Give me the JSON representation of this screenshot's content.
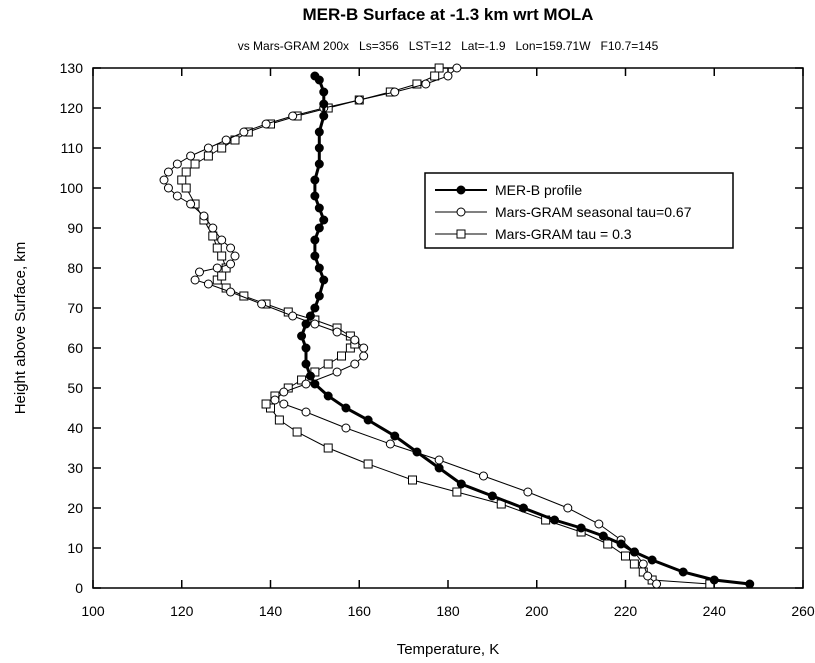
{
  "chart_data": {
    "type": "line",
    "title": "MER-B Surface at -1.3 km wrt MOLA",
    "subtitle": "vs Mars-GRAM 200x   Ls=356   LST=12   Lat=-1.9   Lon=159.71W   F10.7=145",
    "xlabel": "Temperature, K",
    "ylabel": "Height above Surface,  km",
    "xlim": [
      100,
      260
    ],
    "ylim": [
      0,
      130
    ],
    "x_ticks": [
      "100",
      "120",
      "140",
      "160",
      "180",
      "200",
      "220",
      "240",
      "260"
    ],
    "y_ticks": [
      "0",
      "10",
      "20",
      "30",
      "40",
      "50",
      "60",
      "70",
      "80",
      "90",
      "100",
      "110",
      "120",
      "130"
    ],
    "grid": false,
    "legend_position": "right-center",
    "series": [
      {
        "name": "MER-B profile",
        "marker": "filled-circle",
        "color": "#000000",
        "points": [
          [
            248,
            1
          ],
          [
            240,
            2
          ],
          [
            233,
            4
          ],
          [
            226,
            7
          ],
          [
            222,
            9
          ],
          [
            219,
            11
          ],
          [
            215,
            13
          ],
          [
            210,
            15
          ],
          [
            204,
            17
          ],
          [
            197,
            20
          ],
          [
            190,
            23
          ],
          [
            183,
            26
          ],
          [
            178,
            30
          ],
          [
            173,
            34
          ],
          [
            168,
            38
          ],
          [
            162,
            42
          ],
          [
            157,
            45
          ],
          [
            153,
            48
          ],
          [
            150,
            51
          ],
          [
            149,
            53
          ],
          [
            148,
            56
          ],
          [
            148,
            60
          ],
          [
            147,
            63
          ],
          [
            148,
            66
          ],
          [
            149,
            68
          ],
          [
            150,
            70
          ],
          [
            151,
            73
          ],
          [
            152,
            77
          ],
          [
            151,
            80
          ],
          [
            150,
            83
          ],
          [
            150,
            87
          ],
          [
            151,
            90
          ],
          [
            152,
            92
          ],
          [
            151,
            95
          ],
          [
            150,
            98
          ],
          [
            150,
            102
          ],
          [
            151,
            106
          ],
          [
            151,
            110
          ],
          [
            151,
            114
          ],
          [
            152,
            118
          ],
          [
            152,
            121
          ],
          [
            152,
            124
          ],
          [
            151,
            127
          ],
          [
            150,
            128
          ]
        ]
      },
      {
        "name": "Mars-GRAM seasonal tau=0.67",
        "marker": "open-circle",
        "color": "#000000",
        "points": [
          [
            227,
            1
          ],
          [
            225,
            3
          ],
          [
            224,
            6
          ],
          [
            222,
            9
          ],
          [
            219,
            12
          ],
          [
            214,
            16
          ],
          [
            207,
            20
          ],
          [
            198,
            24
          ],
          [
            188,
            28
          ],
          [
            178,
            32
          ],
          [
            167,
            36
          ],
          [
            157,
            40
          ],
          [
            148,
            44
          ],
          [
            143,
            46
          ],
          [
            141,
            47
          ],
          [
            143,
            49
          ],
          [
            148,
            51
          ],
          [
            155,
            54
          ],
          [
            159,
            56
          ],
          [
            161,
            58
          ],
          [
            161,
            60
          ],
          [
            159,
            62
          ],
          [
            155,
            64
          ],
          [
            150,
            66
          ],
          [
            145,
            68
          ],
          [
            138,
            71
          ],
          [
            131,
            74
          ],
          [
            126,
            76
          ],
          [
            123,
            77
          ],
          [
            124,
            79
          ],
          [
            128,
            80
          ],
          [
            131,
            81
          ],
          [
            132,
            83
          ],
          [
            131,
            85
          ],
          [
            129,
            87
          ],
          [
            127,
            90
          ],
          [
            125,
            93
          ],
          [
            122,
            96
          ],
          [
            119,
            98
          ],
          [
            117,
            100
          ],
          [
            116,
            102
          ],
          [
            117,
            104
          ],
          [
            119,
            106
          ],
          [
            122,
            108
          ],
          [
            126,
            110
          ],
          [
            130,
            112
          ],
          [
            134,
            114
          ],
          [
            139,
            116
          ],
          [
            145,
            118
          ],
          [
            152,
            120
          ],
          [
            160,
            122
          ],
          [
            168,
            124
          ],
          [
            175,
            126
          ],
          [
            180,
            128
          ],
          [
            182,
            130
          ]
        ]
      },
      {
        "name": "Mars-GRAM  tau = 0.3",
        "marker": "open-square",
        "color": "#000000",
        "points": [
          [
            239,
            1
          ],
          [
            226,
            2
          ],
          [
            224,
            4
          ],
          [
            222,
            6
          ],
          [
            220,
            8
          ],
          [
            216,
            11
          ],
          [
            210,
            14
          ],
          [
            202,
            17
          ],
          [
            192,
            21
          ],
          [
            182,
            24
          ],
          [
            172,
            27
          ],
          [
            162,
            31
          ],
          [
            153,
            35
          ],
          [
            146,
            39
          ],
          [
            142,
            42
          ],
          [
            140,
            45
          ],
          [
            139,
            46
          ],
          [
            141,
            48
          ],
          [
            144,
            50
          ],
          [
            147,
            52
          ],
          [
            150,
            54
          ],
          [
            153,
            56
          ],
          [
            156,
            58
          ],
          [
            158,
            60
          ],
          [
            159,
            61
          ],
          [
            158,
            63
          ],
          [
            155,
            65
          ],
          [
            150,
            67
          ],
          [
            144,
            69
          ],
          [
            139,
            71
          ],
          [
            134,
            73
          ],
          [
            130,
            75
          ],
          [
            128,
            77
          ],
          [
            129,
            78
          ],
          [
            130,
            80
          ],
          [
            129,
            83
          ],
          [
            128,
            85
          ],
          [
            127,
            88
          ],
          [
            125,
            92
          ],
          [
            123,
            96
          ],
          [
            121,
            100
          ],
          [
            120,
            102
          ],
          [
            121,
            104
          ],
          [
            123,
            106
          ],
          [
            126,
            108
          ],
          [
            129,
            110
          ],
          [
            132,
            112
          ],
          [
            135,
            114
          ],
          [
            140,
            116
          ],
          [
            146,
            118
          ],
          [
            153,
            120
          ],
          [
            160,
            122
          ],
          [
            167,
            124
          ],
          [
            173,
            126
          ],
          [
            177,
            128
          ],
          [
            178,
            130
          ]
        ]
      }
    ]
  }
}
